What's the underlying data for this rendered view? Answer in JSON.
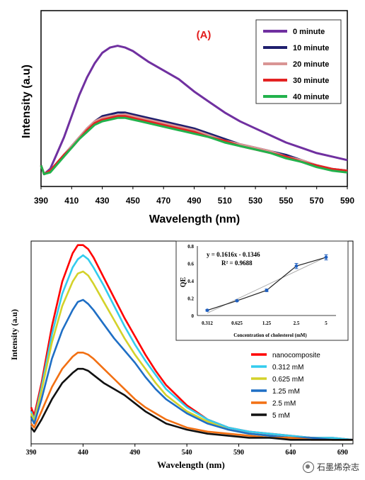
{
  "chart_data": [
    {
      "type": "line",
      "title": "(A)",
      "xlabel": "Wavelength (nm)",
      "ylabel": "Intensity (a.u)",
      "xlim": [
        390,
        590
      ],
      "ylim": [
        0,
        100
      ],
      "xticks": [
        390,
        410,
        430,
        450,
        470,
        490,
        510,
        530,
        550,
        570,
        590
      ],
      "legend_position": "top-right",
      "x": [
        390,
        392,
        396,
        400,
        405,
        410,
        415,
        420,
        425,
        430,
        435,
        440,
        445,
        450,
        455,
        460,
        470,
        480,
        490,
        500,
        510,
        520,
        530,
        540,
        550,
        560,
        570,
        580,
        590
      ],
      "series": [
        {
          "name": "0 minute",
          "color": "#7030a0",
          "values": [
            12,
            7,
            10,
            18,
            28,
            40,
            52,
            62,
            70,
            76,
            79,
            80,
            79,
            77,
            74,
            71,
            66,
            61,
            54,
            48,
            42,
            37,
            33,
            29,
            25,
            22,
            19,
            17,
            15
          ]
        },
        {
          "name": "10 minute",
          "color": "#1f1f6e",
          "values": [
            12,
            7,
            9,
            13,
            18,
            23,
            28,
            33,
            37,
            40,
            41,
            42,
            42,
            41,
            40,
            39,
            37,
            35,
            33,
            30,
            27,
            24,
            22,
            20,
            18,
            15,
            12,
            10,
            9
          ]
        },
        {
          "name": "20 minute",
          "color": "#d99594",
          "values": [
            12,
            7,
            9,
            13,
            18,
            23,
            28,
            33,
            37,
            39,
            40,
            40.5,
            41,
            40,
            39,
            38,
            36,
            34,
            32,
            29,
            26,
            24,
            22,
            20,
            17,
            15,
            12,
            10,
            9
          ]
        },
        {
          "name": "30 minute",
          "color": "#e32222",
          "values": [
            12,
            7,
            9,
            13,
            18,
            22,
            27,
            32,
            36,
            38,
            39,
            40,
            40,
            39,
            38,
            37,
            35,
            33,
            31,
            28,
            26,
            23,
            21,
            19,
            17,
            14,
            12,
            10,
            9
          ]
        },
        {
          "name": "40 minute",
          "color": "#22b24c",
          "values": [
            12,
            7,
            8,
            12,
            17,
            22,
            27,
            31,
            35,
            37,
            38,
            39,
            39,
            38,
            37,
            36,
            34,
            32,
            30,
            28,
            25,
            23,
            21,
            19,
            16,
            14,
            11,
            9,
            8
          ]
        }
      ]
    },
    {
      "type": "line",
      "xlabel": "Wavelength (nm)",
      "ylabel": "Intensity (a.u)",
      "xlim": [
        390,
        700
      ],
      "ylim": [
        0,
        100
      ],
      "xticks": [
        390,
        440,
        490,
        540,
        590,
        640,
        690
      ],
      "legend_position": "bottom-right",
      "x": [
        390,
        393,
        400,
        410,
        420,
        430,
        435,
        440,
        445,
        450,
        460,
        470,
        480,
        490,
        500,
        510,
        520,
        540,
        560,
        580,
        600,
        620,
        640,
        660,
        680,
        700
      ],
      "series": [
        {
          "name": "nanocomposite",
          "color": "#ff0000",
          "values": [
            18,
            14,
            30,
            58,
            80,
            94,
            98,
            98,
            96,
            92,
            82,
            72,
            62,
            53,
            44,
            36,
            29,
            19,
            12,
            8,
            6,
            5,
            4,
            3,
            3,
            2
          ]
        },
        {
          "name": "0.312 mM",
          "color": "#33ccee",
          "values": [
            16,
            12,
            28,
            54,
            74,
            87,
            91,
            93,
            91,
            87,
            78,
            68,
            58,
            49,
            41,
            34,
            27,
            18,
            12,
            8,
            6,
            5,
            4,
            3,
            3,
            2
          ]
        },
        {
          "name": "0.625 mM",
          "color": "#d4d22a",
          "values": [
            15,
            11,
            26,
            50,
            68,
            80,
            84,
            85,
            83,
            79,
            70,
            61,
            52,
            44,
            37,
            30,
            24,
            16,
            11,
            7,
            5,
            4,
            3,
            3,
            2,
            2
          ]
        },
        {
          "name": "1.25 mM",
          "color": "#1f6fc5",
          "values": [
            13,
            10,
            22,
            42,
            56,
            66,
            70,
            71,
            69,
            66,
            59,
            52,
            46,
            40,
            33,
            27,
            22,
            15,
            10,
            7,
            5,
            4,
            3,
            3,
            2,
            2
          ]
        },
        {
          "name": "2.5 mM",
          "color": "#f27013",
          "values": [
            10,
            8,
            16,
            28,
            37,
            43,
            45,
            45,
            44,
            42,
            37,
            32,
            27,
            22,
            18,
            15,
            12,
            8,
            6,
            5,
            4,
            3,
            3,
            2,
            2,
            2
          ]
        },
        {
          "name": "5 mM",
          "color": "#111111",
          "values": [
            8,
            6,
            12,
            22,
            30,
            35,
            37,
            37,
            36,
            34,
            30,
            27,
            24,
            20,
            16,
            13,
            10,
            7,
            5,
            4,
            3,
            3,
            2,
            2,
            2,
            2
          ]
        }
      ],
      "inset": {
        "type": "line",
        "xlabel": "Concentration of cholesterol (mM)",
        "ylabel": "QE",
        "categories": [
          "0.312",
          "0.625",
          "1.25",
          "2.5",
          "5"
        ],
        "values": [
          0.06,
          0.17,
          0.29,
          0.57,
          0.67
        ],
        "errors": [
          0.01,
          0.01,
          0.015,
          0.03,
          0.03
        ],
        "ylim": [
          0,
          0.8
        ],
        "yticks": [
          "0",
          "0.2",
          "0.4",
          "0.6",
          "0.8"
        ],
        "fit_equation": "y = 0.1616x - 0.1346",
        "r_squared": "R² = 0.9688",
        "color": "#1f5fbf"
      }
    }
  ],
  "watermark": "石墨烯杂志"
}
